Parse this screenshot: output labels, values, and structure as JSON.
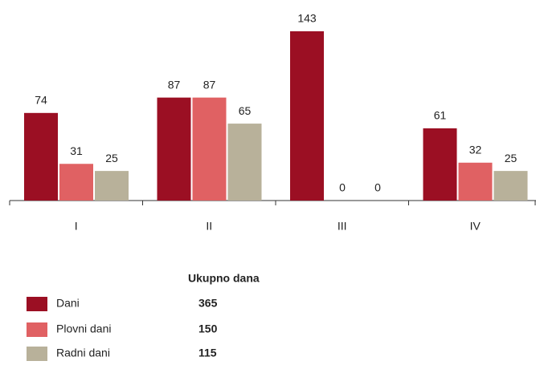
{
  "chart_data": {
    "type": "bar",
    "categories": [
      "I",
      "II",
      "III",
      "IV"
    ],
    "series": [
      {
        "name": "Dani",
        "color": "#9b0f23",
        "values": [
          74,
          87,
          143,
          61
        ],
        "total": 365
      },
      {
        "name": "Plovni dani",
        "color": "#e06163",
        "values": [
          31,
          87,
          0,
          32
        ],
        "total": 150
      },
      {
        "name": "Radni dani",
        "color": "#b8b19a",
        "values": [
          25,
          65,
          0,
          25
        ],
        "total": 115
      }
    ],
    "ylim": [
      0,
      143
    ],
    "legend_title": "Ukupno dana"
  }
}
